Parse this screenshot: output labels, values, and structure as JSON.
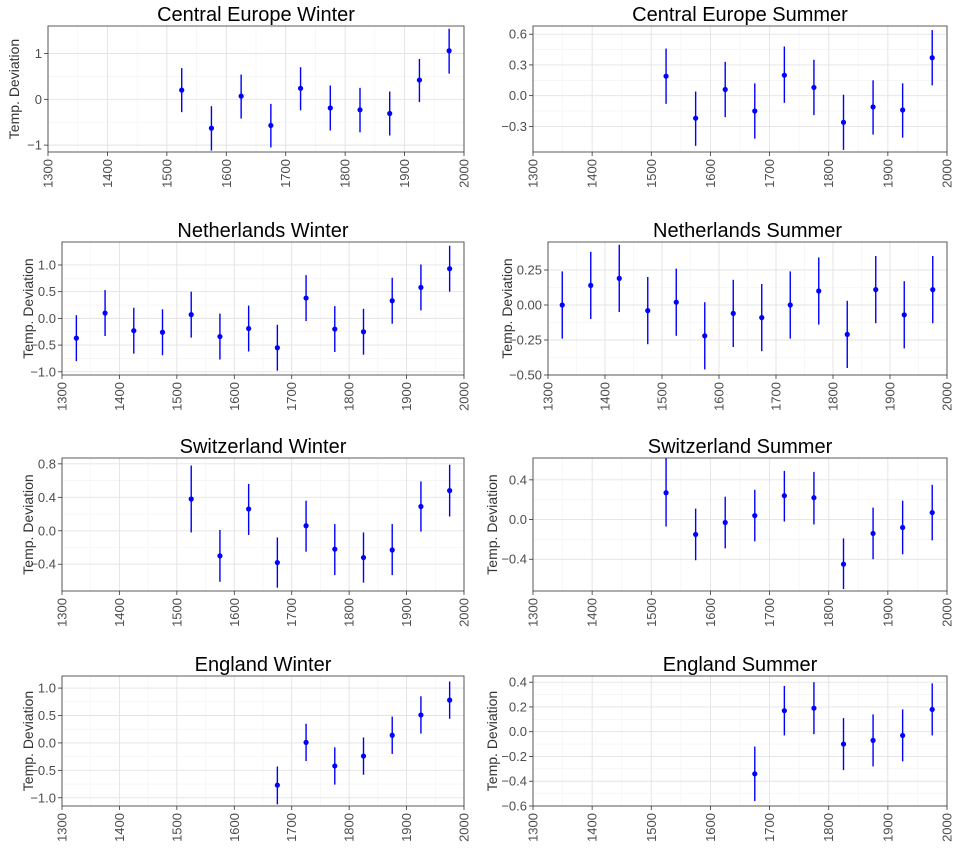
{
  "chart_data": [
    {
      "type": "scatter",
      "title": "Central Europe Winter",
      "ylabel": "Temp. Deviation",
      "xlabel": "",
      "xlim": [
        1300,
        2000
      ],
      "ylim": [
        -1.15,
        1.6
      ],
      "xticks": [
        1300,
        1400,
        1500,
        1600,
        1700,
        1800,
        1900,
        2000
      ],
      "yticks": [
        -1,
        0,
        1
      ],
      "ytick_labels": [
        "−1",
        "0",
        "1"
      ],
      "grid": true,
      "color": "#0000ff",
      "x": [
        1525,
        1575,
        1625,
        1675,
        1725,
        1775,
        1825,
        1875,
        1925,
        1975
      ],
      "y": [
        0.2,
        -0.63,
        0.07,
        -0.57,
        0.24,
        -0.19,
        -0.23,
        -0.31,
        0.42,
        1.06
      ],
      "ymin": [
        -0.28,
        -1.12,
        -0.42,
        -1.05,
        -0.24,
        -0.68,
        -0.72,
        -0.79,
        -0.06,
        0.56
      ],
      "ymax": [
        0.68,
        -0.15,
        0.54,
        -0.1,
        0.7,
        0.3,
        0.25,
        0.17,
        0.88,
        1.54
      ]
    },
    {
      "type": "scatter",
      "title": "Central Europe Summer",
      "ylabel": "",
      "xlabel": "",
      "xlim": [
        1300,
        2000
      ],
      "ylim": [
        -0.55,
        0.68
      ],
      "xticks": [
        1300,
        1400,
        1500,
        1600,
        1700,
        1800,
        1900,
        2000
      ],
      "yticks": [
        -0.3,
        0,
        0.3,
        0.6
      ],
      "ytick_labels": [
        "−0.3",
        "0.0",
        "0.3",
        "0.6"
      ],
      "grid": true,
      "color": "#0000ff",
      "x": [
        1525,
        1575,
        1625,
        1675,
        1725,
        1775,
        1825,
        1875,
        1925,
        1975
      ],
      "y": [
        0.19,
        -0.22,
        0.06,
        -0.15,
        0.2,
        0.08,
        -0.26,
        -0.11,
        -0.14,
        0.37
      ],
      "ymin": [
        -0.08,
        -0.49,
        -0.21,
        -0.42,
        -0.07,
        -0.19,
        -0.53,
        -0.38,
        -0.41,
        0.1
      ],
      "ymax": [
        0.46,
        0.04,
        0.33,
        0.12,
        0.48,
        0.35,
        0.01,
        0.15,
        0.12,
        0.64
      ]
    },
    {
      "type": "scatter",
      "title": "Netherlands Winter",
      "ylabel": "Temp. Deviation",
      "xlabel": "",
      "xlim": [
        1300,
        2000
      ],
      "ylim": [
        -1.06,
        1.43
      ],
      "xticks": [
        1300,
        1400,
        1500,
        1600,
        1700,
        1800,
        1900,
        2000
      ],
      "yticks": [
        -1,
        -0.5,
        0,
        0.5,
        1
      ],
      "ytick_labels": [
        "−1.0",
        "−0.5",
        "0.0",
        "0.5",
        "1.0"
      ],
      "grid": true,
      "color": "#0000ff",
      "x": [
        1325,
        1375,
        1425,
        1475,
        1525,
        1575,
        1625,
        1675,
        1725,
        1775,
        1825,
        1875,
        1925,
        1975
      ],
      "y": [
        -0.37,
        0.1,
        -0.23,
        -0.26,
        0.07,
        -0.34,
        -0.19,
        -0.55,
        0.38,
        -0.2,
        -0.25,
        0.33,
        0.58,
        0.93
      ],
      "ymin": [
        -0.8,
        -0.33,
        -0.66,
        -0.69,
        -0.36,
        -0.77,
        -0.62,
        -0.98,
        -0.05,
        -0.63,
        -0.68,
        -0.1,
        0.15,
        0.5
      ],
      "ymax": [
        0.06,
        0.53,
        0.2,
        0.17,
        0.5,
        0.09,
        0.24,
        -0.12,
        0.81,
        0.23,
        0.18,
        0.76,
        1.01,
        1.36
      ]
    },
    {
      "type": "scatter",
      "title": "Netherlands Summer",
      "ylabel": "Temp. Deviation",
      "xlabel": "",
      "xlim": [
        1300,
        2000
      ],
      "ylim": [
        -0.5,
        0.45
      ],
      "xticks": [
        1300,
        1400,
        1500,
        1600,
        1700,
        1800,
        1900,
        2000
      ],
      "yticks": [
        -0.5,
        -0.25,
        0,
        0.25
      ],
      "ytick_labels": [
        "−0.50",
        "−0.25",
        "0.00",
        "0.25"
      ],
      "grid": true,
      "color": "#0000ff",
      "x": [
        1325,
        1375,
        1425,
        1475,
        1525,
        1575,
        1625,
        1675,
        1725,
        1775,
        1825,
        1875,
        1925,
        1975
      ],
      "y": [
        0.0,
        0.14,
        0.19,
        -0.04,
        0.02,
        -0.22,
        -0.06,
        -0.09,
        0.0,
        0.1,
        -0.21,
        0.11,
        -0.07,
        0.11
      ],
      "ymin": [
        -0.24,
        -0.1,
        -0.05,
        -0.28,
        -0.22,
        -0.46,
        -0.3,
        -0.33,
        -0.24,
        -0.14,
        -0.45,
        -0.13,
        -0.31,
        -0.13
      ],
      "ymax": [
        0.24,
        0.38,
        0.43,
        0.2,
        0.26,
        0.02,
        0.18,
        0.15,
        0.24,
        0.34,
        0.03,
        0.35,
        0.17,
        0.35
      ]
    },
    {
      "type": "scatter",
      "title": "Switzerland Winter",
      "ylabel": "Temp. Deviation",
      "xlabel": "",
      "xlim": [
        1300,
        2000
      ],
      "ylim": [
        -0.72,
        0.87
      ],
      "xticks": [
        1300,
        1400,
        1500,
        1600,
        1700,
        1800,
        1900,
        2000
      ],
      "yticks": [
        -0.4,
        0,
        0.4,
        0.8
      ],
      "ytick_labels": [
        "−0.4",
        "0.0",
        "0.4",
        "0.8"
      ],
      "grid": true,
      "color": "#0000ff",
      "x": [
        1525,
        1575,
        1625,
        1675,
        1725,
        1775,
        1825,
        1875,
        1925,
        1975
      ],
      "y": [
        0.38,
        -0.3,
        0.26,
        -0.38,
        0.06,
        -0.22,
        -0.32,
        -0.23,
        0.29,
        0.48
      ],
      "ymin": [
        -0.02,
        -0.61,
        -0.05,
        -0.68,
        -0.25,
        -0.53,
        -0.62,
        -0.53,
        -0.01,
        0.17
      ],
      "ymax": [
        0.78,
        0.01,
        0.56,
        -0.08,
        0.36,
        0.08,
        -0.02,
        0.08,
        0.59,
        0.79
      ]
    },
    {
      "type": "scatter",
      "title": "Switzerland Summer",
      "ylabel": "Temp. Deviation",
      "xlabel": "",
      "xlim": [
        1300,
        2000
      ],
      "ylim": [
        -0.72,
        0.62
      ],
      "xticks": [
        1300,
        1400,
        1500,
        1600,
        1700,
        1800,
        1900,
        2000
      ],
      "yticks": [
        -0.4,
        0,
        0.4
      ],
      "ytick_labels": [
        "−0.4",
        "0.0",
        "0.4"
      ],
      "grid": true,
      "color": "#0000ff",
      "x": [
        1525,
        1575,
        1625,
        1675,
        1725,
        1775,
        1825,
        1875,
        1925,
        1975
      ],
      "y": [
        0.27,
        -0.15,
        -0.03,
        0.04,
        0.24,
        0.22,
        -0.45,
        -0.14,
        -0.08,
        0.07
      ],
      "ymin": [
        -0.07,
        -0.41,
        -0.29,
        -0.22,
        -0.02,
        -0.05,
        -0.7,
        -0.4,
        -0.35,
        -0.21
      ],
      "ymax": [
        0.62,
        0.11,
        0.23,
        0.3,
        0.49,
        0.48,
        -0.19,
        0.12,
        0.19,
        0.35
      ]
    },
    {
      "type": "scatter",
      "title": "England Winter",
      "ylabel": "Temp. Deviation",
      "xlabel": "",
      "xlim": [
        1300,
        2000
      ],
      "ylim": [
        -1.15,
        1.22
      ],
      "xticks": [
        1300,
        1400,
        1500,
        1600,
        1700,
        1800,
        1900,
        2000
      ],
      "yticks": [
        -1,
        -0.5,
        0,
        0.5,
        1
      ],
      "ytick_labels": [
        "−1.0",
        "−0.5",
        "0.0",
        "0.5",
        "1.0"
      ],
      "grid": true,
      "color": "#0000ff",
      "x": [
        1675,
        1725,
        1775,
        1825,
        1875,
        1925,
        1975
      ],
      "y": [
        -0.77,
        0.01,
        -0.42,
        -0.24,
        0.14,
        0.51,
        0.78
      ],
      "ymin": [
        -1.12,
        -0.33,
        -0.76,
        -0.58,
        -0.2,
        0.17,
        0.44
      ],
      "ymax": [
        -0.43,
        0.35,
        -0.08,
        0.1,
        0.48,
        0.85,
        1.12
      ]
    },
    {
      "type": "scatter",
      "title": "England Summer",
      "ylabel": "Temp. Deviation",
      "xlabel": "",
      "xlim": [
        1300,
        2000
      ],
      "ylim": [
        -0.6,
        0.45
      ],
      "xticks": [
        1300,
        1400,
        1500,
        1600,
        1700,
        1800,
        1900,
        2000
      ],
      "yticks": [
        -0.6,
        -0.4,
        -0.2,
        0,
        0.2,
        0.4
      ],
      "ytick_labels": [
        "−0.6",
        "−0.4",
        "−0.2",
        "0.0",
        "0.2",
        "0.4"
      ],
      "grid": true,
      "color": "#0000ff",
      "x": [
        1675,
        1725,
        1775,
        1825,
        1875,
        1925,
        1975
      ],
      "y": [
        -0.34,
        0.17,
        0.19,
        -0.1,
        -0.07,
        -0.03,
        0.18
      ],
      "ymin": [
        -0.56,
        -0.03,
        -0.02,
        -0.31,
        -0.28,
        -0.24,
        -0.03
      ],
      "ymax": [
        -0.12,
        0.37,
        0.4,
        0.11,
        0.14,
        0.18,
        0.39
      ]
    }
  ]
}
